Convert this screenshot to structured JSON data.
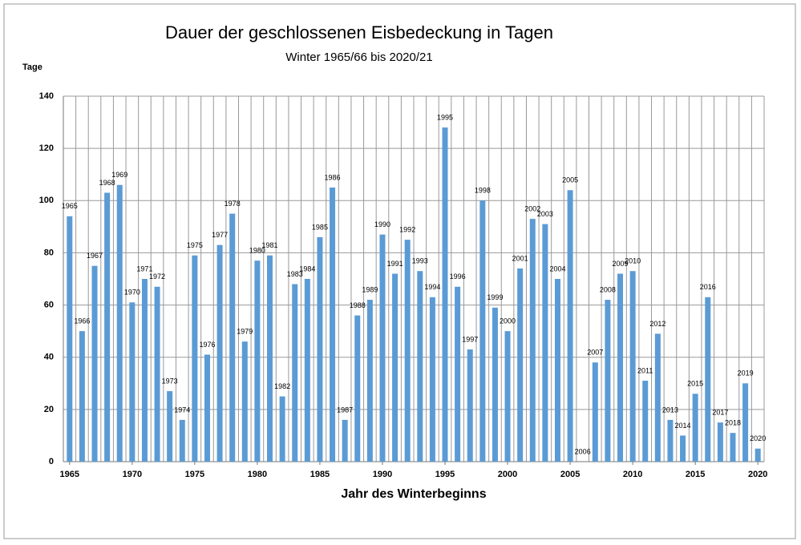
{
  "chart_data": {
    "type": "bar",
    "title": "Dauer der geschlossenen Eisbedeckung in Tagen",
    "subtitle": "Winter 1965/66 bis 2020/21",
    "y_label": "Tage",
    "x_label": "Jahr des Winterbeginns",
    "color": "#5b9bd5",
    "grid": true,
    "x": [
      1965,
      1966,
      1967,
      1968,
      1969,
      1970,
      1971,
      1972,
      1973,
      1974,
      1975,
      1976,
      1977,
      1978,
      1979,
      1980,
      1981,
      1982,
      1983,
      1984,
      1985,
      1986,
      1987,
      1988,
      1989,
      1990,
      1991,
      1992,
      1993,
      1994,
      1995,
      1996,
      1997,
      1998,
      1999,
      2000,
      2001,
      2002,
      2003,
      2004,
      2005,
      2006,
      2007,
      2008,
      2009,
      2010,
      2011,
      2012,
      2013,
      2014,
      2015,
      2016,
      2017,
      2018,
      2019,
      2020
    ],
    "values": [
      94,
      50,
      75,
      103,
      106,
      61,
      70,
      67,
      27,
      16,
      79,
      41,
      83,
      95,
      46,
      77,
      79,
      25,
      68,
      70,
      86,
      105,
      16,
      56,
      62,
      87,
      72,
      85,
      73,
      63,
      128,
      67,
      43,
      100,
      59,
      50,
      74,
      93,
      91,
      70,
      104,
      0,
      38,
      62,
      72,
      73,
      31,
      49,
      16,
      10,
      26,
      63,
      15,
      11,
      30,
      5
    ],
    "xlim": [
      1964.5,
      2020.5
    ],
    "xticks": [
      1965,
      1970,
      1975,
      1980,
      1985,
      1990,
      1995,
      2000,
      2005,
      2010,
      2015,
      2020
    ],
    "ylim": [
      0,
      140
    ],
    "yticks": [
      0,
      20,
      40,
      60,
      80,
      100,
      120,
      140
    ]
  }
}
